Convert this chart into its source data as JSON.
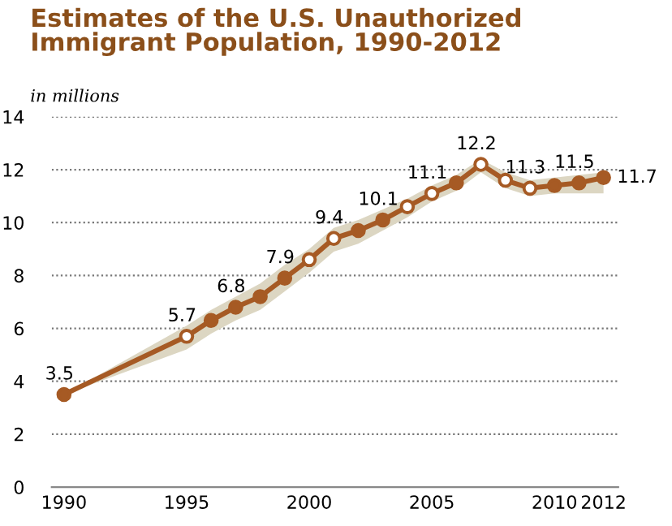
{
  "chart_data": {
    "type": "line",
    "title": "Estimates of the U.S. Unauthorized Immigrant Population, 1990-2012",
    "subtitle": "in millions",
    "x": [
      1990,
      1995,
      1996,
      1997,
      1998,
      1999,
      2000,
      2001,
      2002,
      2003,
      2004,
      2005,
      2006,
      2007,
      2008,
      2009,
      2010,
      2011,
      2012
    ],
    "series": [
      {
        "color": "#a65a24",
        "values": [
          3.5,
          5.7,
          6.3,
          6.8,
          7.2,
          7.9,
          8.6,
          9.4,
          9.7,
          10.1,
          10.6,
          11.1,
          11.5,
          12.2,
          11.6,
          11.3,
          11.4,
          11.5,
          11.7
        ],
        "lower": [
          3.5,
          5.2,
          5.8,
          6.3,
          6.7,
          7.4,
          8.1,
          8.9,
          9.2,
          9.7,
          10.2,
          10.8,
          11.2,
          11.9,
          11.3,
          11.0,
          11.1,
          11.1,
          11.1
        ],
        "upper": [
          3.5,
          6.1,
          6.7,
          7.2,
          7.7,
          8.4,
          9.0,
          9.8,
          10.1,
          10.5,
          10.9,
          11.4,
          11.8,
          12.4,
          11.9,
          11.6,
          11.7,
          11.8,
          11.9
        ],
        "colors": [
          "#a65a24",
          "#ffffff",
          "#a65a24",
          "#a65a24",
          "#a65a24",
          "#a65a24",
          "#ffffff",
          "#ffffff",
          "#a65a24",
          "#a65a24",
          "#ffffff",
          "#ffffff",
          "#a65a24",
          "#ffffff",
          "#ffffff",
          "#ffffff",
          "#a65a24",
          "#a65a24",
          "#a65a24"
        ],
        "value_labels": [
          "3.5",
          "5.7",
          null,
          "6.8",
          null,
          "7.9",
          null,
          "9.4",
          null,
          "10.1",
          null,
          "11.1",
          null,
          "12.2",
          null,
          "11.3",
          null,
          "11.5",
          "11.7"
        ]
      }
    ],
    "xlim": [
      1989.5,
      2012.6
    ],
    "xticks": [
      1990,
      1995,
      2000,
      2005,
      2010,
      2012
    ],
    "ylim": [
      0,
      14
    ],
    "yticks": [
      0,
      2,
      4,
      6,
      8,
      10,
      12,
      14
    ],
    "grid": "y",
    "marker": "circle",
    "line_style": "solid",
    "legend": false
  }
}
